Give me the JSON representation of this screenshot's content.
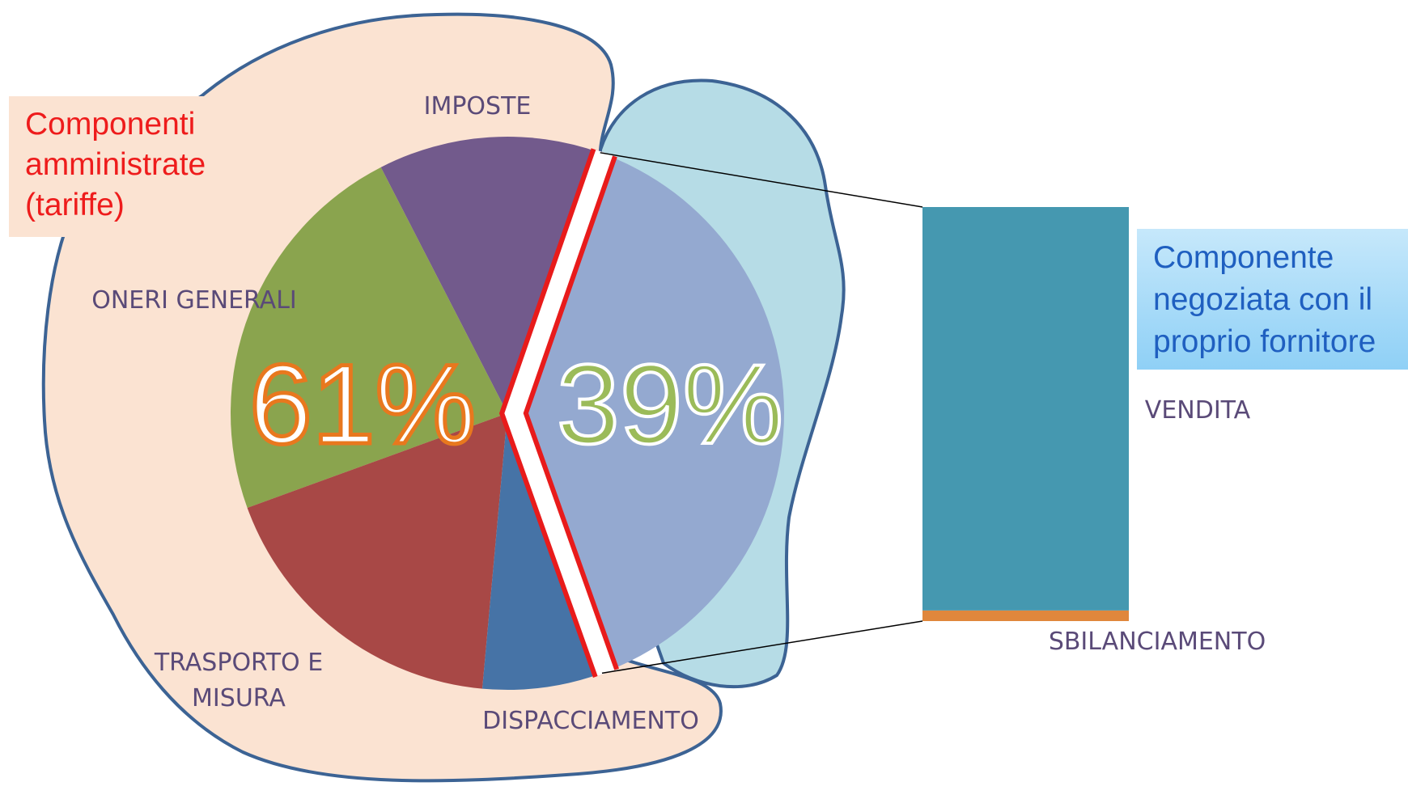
{
  "chart_data": [
    {
      "type": "pie",
      "categories": [
        "IMPOSTE",
        "ONERI GENERALI",
        "TRASPORTO E MISURA",
        "DISPACCIAMENTO",
        null
      ],
      "values": [
        13,
        23,
        18,
        7,
        39
      ],
      "colors": [
        "#725a8c",
        "#8aa44e",
        "#a84846",
        "#4673a6",
        "#94a9d0"
      ],
      "group_totals": [
        61,
        39
      ],
      "group_total_labels": [
        "61%",
        "39%"
      ],
      "annotations": [
        "Componenti amministrate (tariffe)",
        "Componente negoziata con il proprio fornitore"
      ]
    },
    {
      "type": "bar",
      "categories": [
        "VENDITA",
        "SBILANCIAMENTO"
      ],
      "values": [
        38,
        1
      ],
      "colors": [
        "#4598b0",
        "#e0873c"
      ]
    }
  ]
}
